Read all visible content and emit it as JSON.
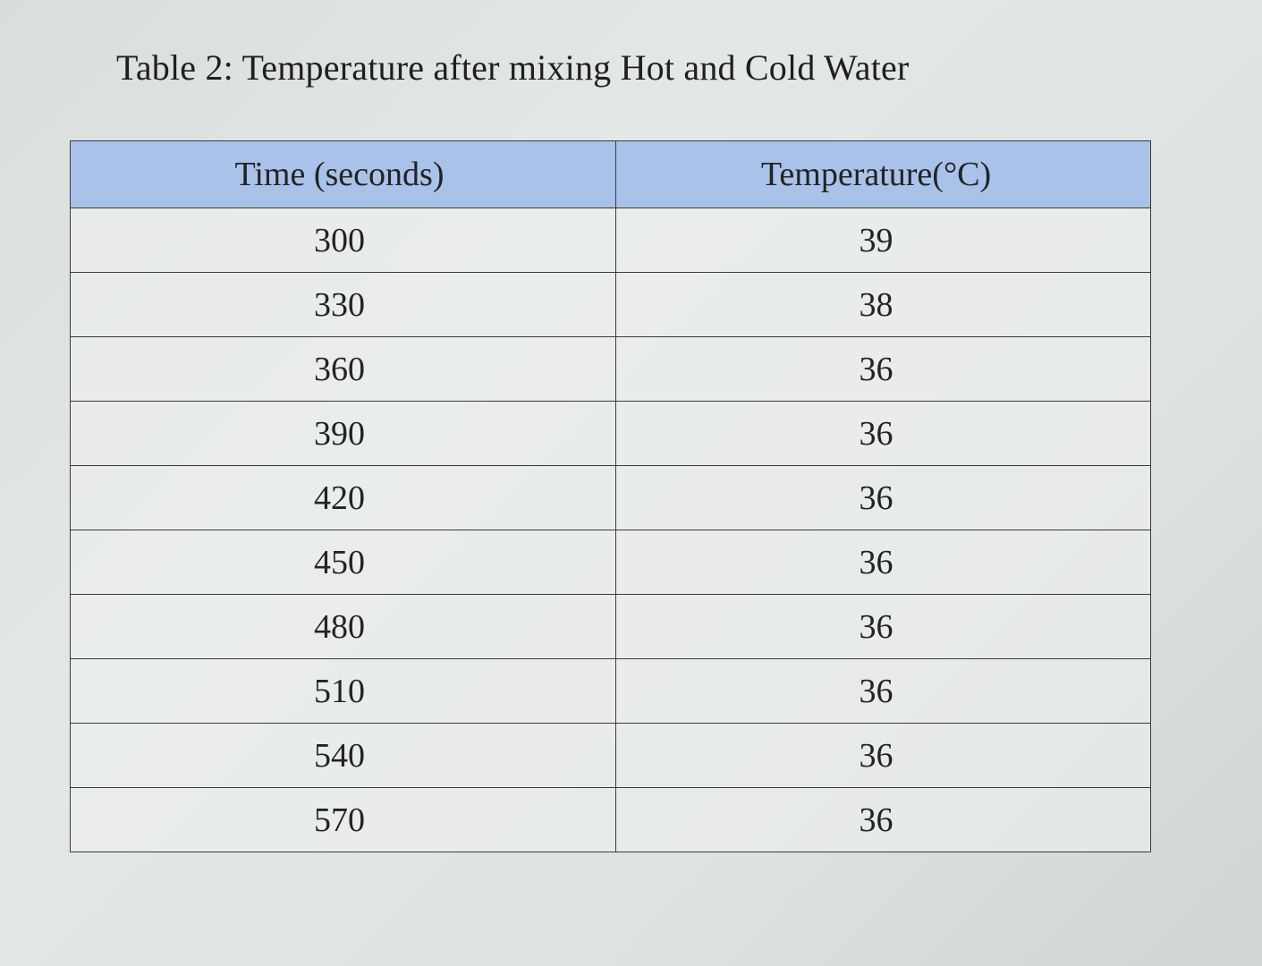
{
  "caption": "Table 2: Temperature after mixing Hot and Cold Water",
  "table": {
    "headers": [
      "Time (seconds)",
      "Temperature(°C)"
    ],
    "rows": [
      [
        "300",
        "39"
      ],
      [
        "330",
        "38"
      ],
      [
        "360",
        "36"
      ],
      [
        "390",
        "36"
      ],
      [
        "420",
        "36"
      ],
      [
        "450",
        "36"
      ],
      [
        "480",
        "36"
      ],
      [
        "510",
        "36"
      ],
      [
        "540",
        "36"
      ],
      [
        "570",
        "36"
      ]
    ]
  },
  "colors": {
    "header_background": "#a9c2ea",
    "grid_lines": "#3a3a3a",
    "page_background": "#e3e8e5"
  }
}
